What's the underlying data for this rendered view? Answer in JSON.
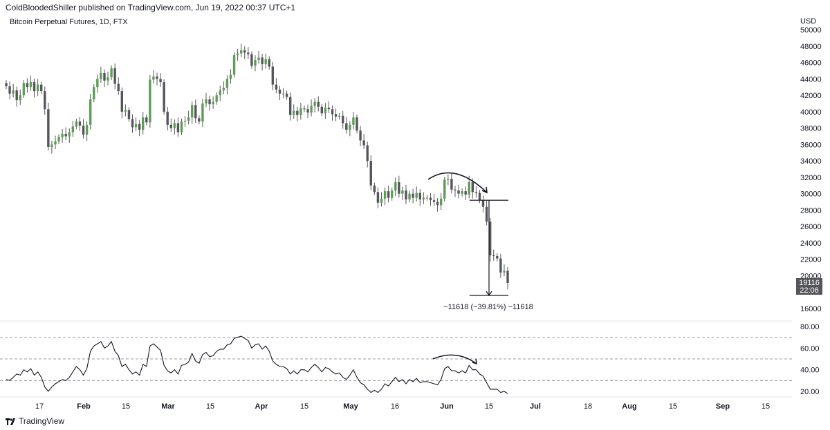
{
  "header": {
    "published": "ColdBloodedShiller published on TradingView.com, Jun 19, 2022 00:37 UTC+1",
    "symbol": "Bitcoin Perpetual Futures, 1D, FTX"
  },
  "footer": {
    "brand": "TradingView"
  },
  "colors": {
    "up": "#5b9e54",
    "down": "#55555c",
    "wick": "#555555",
    "grid": "#9a9a9a",
    "badge": "#55555c"
  },
  "chart_data": [
    {
      "type": "candlestick",
      "currency": "USD",
      "ylim": [
        16000,
        50000
      ],
      "y_ticks": [
        50000,
        48000,
        46000,
        44000,
        42000,
        40000,
        38000,
        36000,
        34000,
        32000,
        30000,
        28000,
        26000,
        24000,
        22000,
        20000,
        16000
      ],
      "x_ticks": [
        "17",
        "Feb",
        "15",
        "Mar",
        "15",
        "Apr",
        "15",
        "May",
        "16",
        "Jun",
        "15",
        "Jul",
        "18",
        "Aug",
        "15",
        "Sep",
        "15"
      ],
      "last_price": "19116",
      "countdown": "22:06",
      "annotation": "−11618 (−39.81%) −11618",
      "measure": {
        "from": 29200,
        "to": 17600
      },
      "close": [
        43100,
        42200,
        42600,
        41400,
        42000,
        43500,
        43000,
        43600,
        42500,
        43300,
        42500,
        40300,
        35700,
        36000,
        36400,
        36900,
        37300,
        37000,
        37500,
        38200,
        38800,
        38300,
        37200,
        38400,
        41500,
        43000,
        44000,
        44700,
        43800,
        44200,
        45300,
        43400,
        42500,
        40000,
        40200,
        39100,
        38100,
        38500,
        37800,
        39300,
        38700,
        43900,
        44300,
        44000,
        43600,
        40000,
        38400,
        38000,
        38600,
        37500,
        38800,
        38900,
        39300,
        40800,
        39200,
        38800,
        41000,
        41500,
        40900,
        41200,
        42000,
        42600,
        42900,
        44000,
        44500,
        46900,
        47100,
        47500,
        47200,
        47000,
        45600,
        46300,
        46600,
        45800,
        46400,
        45500,
        43300,
        42700,
        42200,
        42200,
        41800,
        39600,
        40100,
        39600,
        40400,
        40300,
        39900,
        40700,
        41200,
        40600,
        39800,
        40500,
        40300,
        39700,
        39400,
        39500,
        38600,
        37800,
        38400,
        39300,
        37700,
        36500,
        35900,
        34000,
        31000,
        30200,
        28900,
        29400,
        30300,
        29500,
        30400,
        31400,
        30000,
        30400,
        29300,
        30000,
        29500,
        30100,
        29300,
        29500,
        29500,
        29200,
        29000,
        28600,
        29400,
        31700,
        31800,
        30500,
        30400,
        30000,
        30300,
        29900,
        31400,
        30200,
        30100,
        29200,
        28400,
        26600,
        22500,
        22400,
        22100,
        20400,
        20600,
        19116
      ],
      "rsi": {
        "ylim": [
          16,
          84
        ],
        "y_ticks": [
          80,
          60,
          40,
          20
        ],
        "levels": [
          70,
          50,
          30
        ],
        "values": [
          31,
          30,
          33,
          36,
          35,
          40,
          38,
          41,
          35,
          38,
          33,
          24,
          20,
          24,
          27,
          29,
          31,
          30,
          33,
          38,
          43,
          40,
          35,
          41,
          57,
          62,
          64,
          66,
          60,
          62,
          66,
          57,
          53,
          43,
          45,
          40,
          36,
          38,
          35,
          45,
          43,
          62,
          64,
          61,
          58,
          44,
          39,
          37,
          40,
          36,
          44,
          45,
          47,
          55,
          48,
          46,
          54,
          56,
          52,
          53,
          57,
          59,
          59,
          63,
          64,
          69,
          70,
          71,
          69,
          67,
          60,
          63,
          64,
          59,
          62,
          57,
          48,
          45,
          43,
          43,
          41,
          36,
          39,
          36,
          40,
          40,
          38,
          42,
          45,
          42,
          38,
          42,
          41,
          38,
          36,
          37,
          33,
          31,
          35,
          40,
          33,
          28,
          26,
          22,
          19,
          21,
          19,
          22,
          27,
          25,
          29,
          33,
          29,
          31,
          27,
          31,
          29,
          32,
          28,
          29,
          29,
          28,
          27,
          26,
          31,
          41,
          43,
          39,
          39,
          37,
          39,
          37,
          44,
          40,
          40,
          36,
          34,
          28,
          22,
          22,
          22,
          19,
          20,
          18
        ]
      }
    }
  ]
}
